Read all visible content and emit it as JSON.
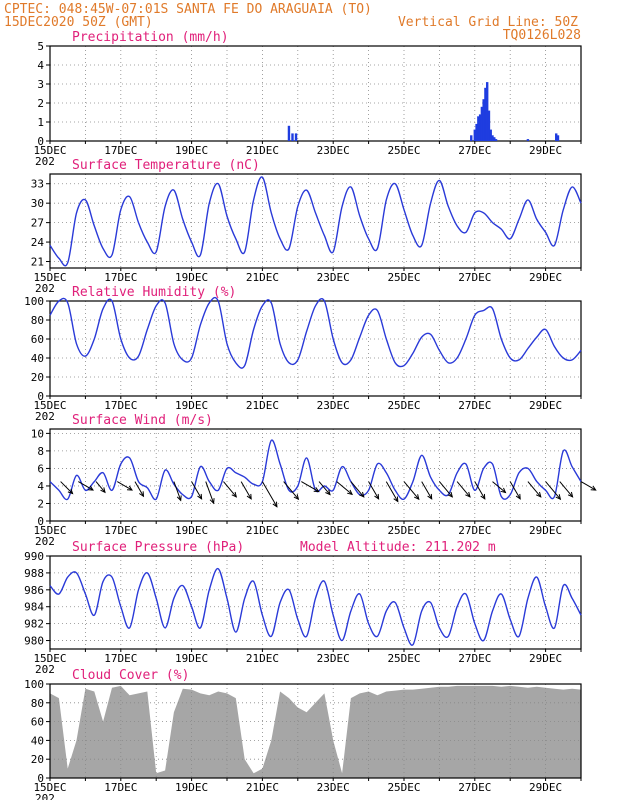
{
  "header": {
    "line1_left": "CPTEC:  048:45W-07:01S  SANTA FE DO ARAGUAIA (TO)",
    "line2_left": "15DEC2020 50Z (GMT)",
    "line2_right": "Vertical Grid Line: 50Z",
    "line3_right": "TQ0126L028"
  },
  "x_axis": {
    "labels": [
      "15DEC",
      "17DEC",
      "19DEC",
      "21DEC",
      "23DEC",
      "25DEC",
      "27DEC",
      "29DEC"
    ],
    "label_days": [
      0,
      2,
      4,
      6,
      8,
      10,
      12,
      14
    ],
    "grid_days": [
      0,
      1,
      2,
      3,
      4,
      5,
      6,
      7,
      8,
      9,
      10,
      11,
      12,
      13,
      14,
      15
    ],
    "range_days": [
      0,
      15
    ],
    "year_fragment": "202"
  },
  "colors": {
    "line": "#2a3ad8",
    "bar": "#1f3de0",
    "cloud": "#a6a6a6",
    "title": "#e0207a",
    "header": "#e07a2a"
  },
  "chart_data": [
    {
      "id": "precipitation",
      "type": "bar",
      "title": "Precipitation (mm/h)",
      "ylim": [
        0,
        5
      ],
      "yticks": [
        0,
        1,
        2,
        3,
        4,
        5
      ],
      "grid": true,
      "x_days": [
        6.75,
        6.85,
        6.95,
        11.9,
        12.0,
        12.05,
        12.1,
        12.15,
        12.2,
        12.25,
        12.3,
        12.35,
        12.4,
        12.45,
        12.5,
        12.55,
        12.6,
        13.5,
        14.3,
        14.35
      ],
      "values": [
        0.8,
        0.4,
        0.4,
        0.3,
        0.6,
        0.9,
        1.3,
        1.4,
        1.8,
        2.2,
        2.8,
        3.1,
        1.6,
        0.6,
        0.3,
        0.2,
        0.1,
        0.1,
        0.4,
        0.3
      ]
    },
    {
      "id": "temperature",
      "type": "line",
      "title": "Surface Temperature (nC)",
      "ylim": [
        20,
        34.5
      ],
      "yticks": [
        21,
        24,
        27,
        30,
        33
      ],
      "grid": true,
      "x_days": [
        0,
        0.25,
        0.5,
        0.75,
        1,
        1.25,
        1.5,
        1.75,
        2,
        2.25,
        2.5,
        2.75,
        3,
        3.25,
        3.5,
        3.75,
        4,
        4.25,
        4.5,
        4.75,
        5,
        5.25,
        5.5,
        5.75,
        6,
        6.25,
        6.5,
        6.75,
        7,
        7.25,
        7.5,
        7.75,
        8,
        8.25,
        8.5,
        8.75,
        9,
        9.25,
        9.5,
        9.75,
        10,
        10.25,
        10.5,
        10.75,
        11,
        11.25,
        11.5,
        11.75,
        12,
        12.25,
        12.5,
        12.75,
        13,
        13.25,
        13.5,
        13.75,
        14,
        14.25,
        14.5,
        14.75,
        15
      ],
      "values": [
        23.5,
        21.5,
        20.8,
        28.5,
        30.5,
        26.5,
        23.0,
        22.0,
        29.0,
        31.0,
        27.0,
        24.0,
        22.5,
        29.5,
        32.0,
        27.5,
        24.0,
        22.0,
        30.0,
        33.0,
        28.0,
        24.5,
        22.5,
        30.5,
        34.0,
        28.5,
        24.5,
        23.0,
        29.5,
        32.0,
        28.5,
        25.0,
        22.5,
        29.5,
        32.5,
        28.0,
        24.5,
        23.0,
        30.5,
        33.0,
        29.0,
        25.0,
        23.5,
        30.0,
        33.5,
        29.5,
        26.5,
        25.5,
        28.5,
        28.5,
        27.0,
        26.0,
        24.5,
        27.5,
        30.5,
        27.5,
        25.5,
        23.5,
        29.0,
        32.5,
        30.0
      ]
    },
    {
      "id": "humidity",
      "type": "line",
      "title": "Relative Humidity (%)",
      "ylim": [
        0,
        100
      ],
      "yticks": [
        0,
        20,
        40,
        60,
        80,
        100
      ],
      "grid": true,
      "x_days": [
        0,
        0.25,
        0.5,
        0.75,
        1,
        1.25,
        1.5,
        1.75,
        2,
        2.25,
        2.5,
        2.75,
        3,
        3.25,
        3.5,
        3.75,
        4,
        4.25,
        4.5,
        4.75,
        5,
        5.25,
        5.5,
        5.75,
        6,
        6.25,
        6.5,
        6.75,
        7,
        7.25,
        7.5,
        7.75,
        8,
        8.25,
        8.5,
        8.75,
        9,
        9.25,
        9.5,
        9.75,
        10,
        10.25,
        10.5,
        10.75,
        11,
        11.25,
        11.5,
        11.75,
        12,
        12.25,
        12.5,
        12.75,
        13,
        13.25,
        13.5,
        13.75,
        14,
        14.25,
        14.5,
        14.75,
        15
      ],
      "values": [
        85,
        100,
        98,
        55,
        42,
        60,
        92,
        100,
        60,
        40,
        42,
        70,
        95,
        98,
        55,
        38,
        40,
        75,
        98,
        100,
        55,
        35,
        32,
        70,
        95,
        98,
        55,
        35,
        38,
        68,
        95,
        100,
        60,
        35,
        38,
        62,
        85,
        90,
        60,
        35,
        32,
        45,
        62,
        65,
        48,
        35,
        40,
        60,
        85,
        90,
        92,
        60,
        40,
        38,
        50,
        62,
        70,
        52,
        40,
        38,
        48
      ]
    },
    {
      "id": "wind",
      "type": "line",
      "title": "Surface Wind (m/s)",
      "ylim": [
        0,
        10.5
      ],
      "yticks": [
        0,
        2,
        4,
        6,
        8,
        10
      ],
      "grid": true,
      "x_days": [
        0,
        0.25,
        0.5,
        0.75,
        1,
        1.25,
        1.5,
        1.75,
        2,
        2.25,
        2.5,
        2.75,
        3,
        3.25,
        3.5,
        3.75,
        4,
        4.25,
        4.5,
        4.75,
        5,
        5.25,
        5.5,
        5.75,
        6,
        6.25,
        6.5,
        6.75,
        7,
        7.25,
        7.5,
        7.75,
        8,
        8.25,
        8.5,
        8.75,
        9,
        9.25,
        9.5,
        9.75,
        10,
        10.25,
        10.5,
        10.75,
        11,
        11.25,
        11.5,
        11.75,
        12,
        12.25,
        12.5,
        12.75,
        13,
        13.25,
        13.5,
        13.75,
        14,
        14.25,
        14.5,
        14.75,
        15
      ],
      "values": [
        4.5,
        3.5,
        2.5,
        5.2,
        3.5,
        4.5,
        5.5,
        3.5,
        6.5,
        7.2,
        4.5,
        3.8,
        2.5,
        5.8,
        4.2,
        3.0,
        2.8,
        6.2,
        4.5,
        3.5,
        6.0,
        5.5,
        5.0,
        4.2,
        4.5,
        9.2,
        6.5,
        3.5,
        4.0,
        7.2,
        3.5,
        4.0,
        3.5,
        6.2,
        4.5,
        3.0,
        3.5,
        6.5,
        5.5,
        3.5,
        2.5,
        4.5,
        7.5,
        5.0,
        3.5,
        3.0,
        5.5,
        6.5,
        3.5,
        6.0,
        6.5,
        2.8,
        3.0,
        5.5,
        6.0,
        4.5,
        3.5,
        2.8,
        8.0,
        6.2,
        4.5
      ],
      "arrows": {
        "x_days": [
          0.3,
          0.8,
          1.3,
          1.9,
          2.4,
          3.5,
          4.0,
          4.4,
          4.9,
          5.4,
          6.0,
          6.6,
          7.1,
          7.6,
          8.1,
          8.5,
          9.0,
          9.5,
          10.0,
          10.5,
          11.0,
          11.5,
          12.0,
          12.5,
          13.0,
          13.5,
          14.0,
          14.4,
          15.0
        ],
        "speed": [
          3,
          3,
          2,
          3,
          3,
          4,
          4,
          5,
          4,
          4,
          7,
          5,
          4,
          3,
          4,
          4,
          4,
          5,
          5,
          4,
          4,
          4,
          4,
          3,
          4,
          4,
          5,
          4,
          3
        ],
        "dir_deg": [
          315,
          300,
          320,
          300,
          330,
          340,
          330,
          340,
          320,
          330,
          330,
          320,
          300,
          320,
          310,
          320,
          330,
          330,
          320,
          330,
          320,
          320,
          330,
          310,
          330,
          320,
          320,
          320,
          300
        ]
      }
    },
    {
      "id": "pressure",
      "type": "line",
      "title": "Surface Pressure (hPa)",
      "annotation": "Model Altitude: 211.202 m",
      "ylim": [
        979,
        990
      ],
      "yticks": [
        980,
        982,
        984,
        986,
        988,
        990
      ],
      "grid": true,
      "x_days": [
        0,
        0.25,
        0.5,
        0.75,
        1,
        1.25,
        1.5,
        1.75,
        2,
        2.25,
        2.5,
        2.75,
        3,
        3.25,
        3.5,
        3.75,
        4,
        4.25,
        4.5,
        4.75,
        5,
        5.25,
        5.5,
        5.75,
        6,
        6.25,
        6.5,
        6.75,
        7,
        7.25,
        7.5,
        7.75,
        8,
        8.25,
        8.5,
        8.75,
        9,
        9.25,
        9.5,
        9.75,
        10,
        10.25,
        10.5,
        10.75,
        11,
        11.25,
        11.5,
        11.75,
        12,
        12.25,
        12.5,
        12.75,
        13,
        13.25,
        13.5,
        13.75,
        14,
        14.25,
        14.5,
        14.75,
        15
      ],
      "values": [
        986.5,
        985.5,
        987.5,
        988.0,
        985.5,
        983.0,
        987.0,
        987.5,
        984.0,
        981.5,
        986.0,
        988.0,
        985.0,
        981.5,
        985.0,
        986.5,
        984.0,
        981.5,
        986.0,
        988.5,
        985.0,
        981.0,
        985.0,
        987.0,
        983.0,
        980.5,
        984.5,
        986.0,
        982.5,
        980.5,
        985.0,
        987.0,
        983.0,
        980.0,
        983.5,
        985.5,
        982.0,
        980.5,
        983.5,
        984.5,
        981.5,
        979.5,
        983.5,
        984.5,
        981.5,
        980.5,
        984.0,
        985.5,
        982.0,
        980.0,
        983.5,
        985.5,
        982.5,
        980.5,
        985.0,
        987.5,
        984.0,
        981.5,
        986.5,
        985.0,
        983.0
      ]
    },
    {
      "id": "cloud_cover",
      "type": "area",
      "title": "Cloud Cover (%)",
      "ylim": [
        0,
        100
      ],
      "yticks": [
        0,
        20,
        40,
        60,
        80,
        100
      ],
      "grid": true,
      "x_days": [
        0,
        0.25,
        0.5,
        0.75,
        1,
        1.25,
        1.5,
        1.75,
        2,
        2.25,
        2.5,
        2.75,
        3,
        3.25,
        3.5,
        3.75,
        4,
        4.25,
        4.5,
        4.75,
        5,
        5.25,
        5.5,
        5.75,
        6,
        6.25,
        6.5,
        6.75,
        7,
        7.25,
        7.5,
        7.75,
        8,
        8.25,
        8.5,
        8.75,
        9,
        9.25,
        9.5,
        9.75,
        10,
        10.25,
        10.5,
        10.75,
        11,
        11.25,
        11.5,
        11.75,
        12,
        12.25,
        12.5,
        12.75,
        13,
        13.25,
        13.5,
        13.75,
        14,
        14.25,
        14.5,
        14.75,
        15
      ],
      "values": [
        90,
        85,
        10,
        40,
        95,
        92,
        60,
        96,
        98,
        88,
        90,
        92,
        5,
        8,
        70,
        95,
        94,
        90,
        88,
        92,
        90,
        85,
        20,
        5,
        10,
        40,
        92,
        85,
        75,
        70,
        80,
        90,
        40,
        5,
        85,
        90,
        92,
        88,
        92,
        93,
        94,
        94,
        95,
        96,
        97,
        97,
        98,
        98,
        98,
        98,
        98,
        97,
        98,
        97,
        96,
        97,
        96,
        95,
        94,
        95,
        94
      ]
    }
  ]
}
